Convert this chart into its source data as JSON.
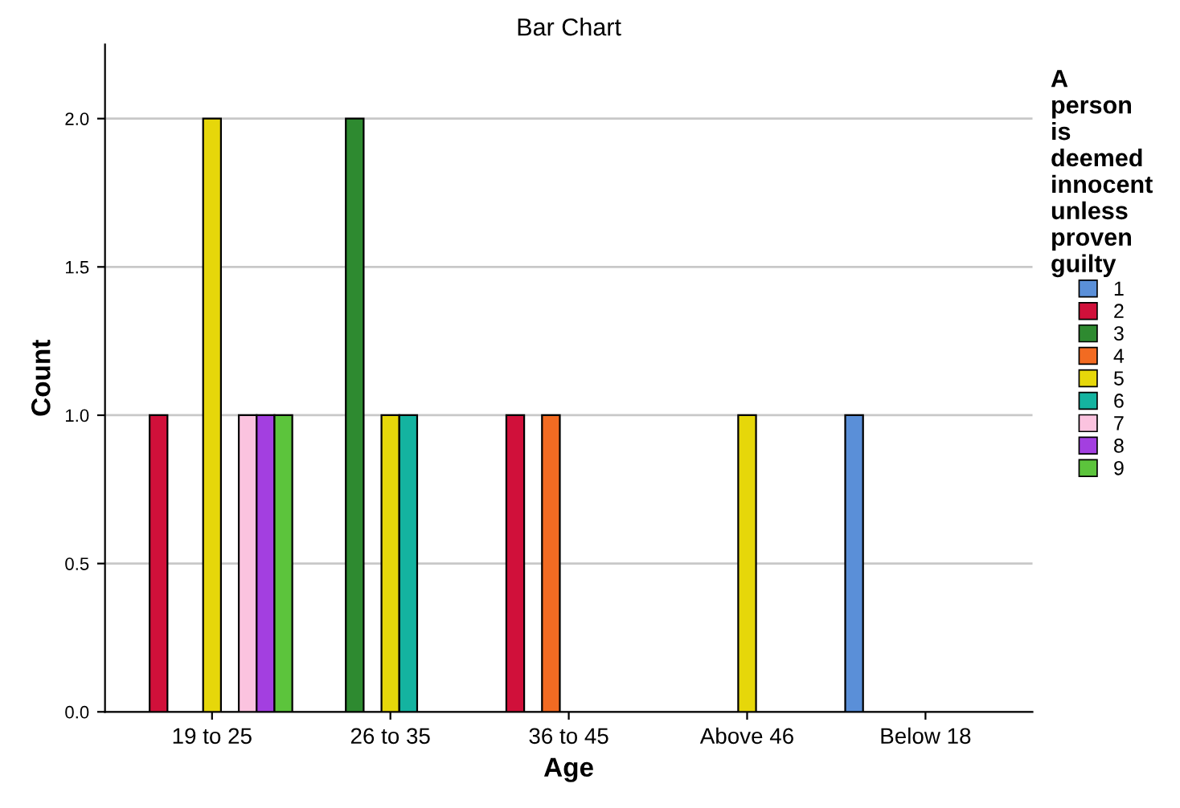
{
  "chart_data": {
    "type": "bar",
    "title": "Bar Chart",
    "xlabel": "Age",
    "ylabel": "Count",
    "legend_title": "A person is deemed innocent unless proven guilty",
    "categories": [
      "19 to 25",
      "26 to 35",
      "36 to 45",
      "Above 46",
      "Below 18"
    ],
    "series": [
      {
        "name": "1",
        "color": "#5a8fd8",
        "values": [
          null,
          null,
          null,
          null,
          1
        ]
      },
      {
        "name": "2",
        "color": "#d0103a",
        "values": [
          1,
          null,
          1,
          null,
          null
        ]
      },
      {
        "name": "3",
        "color": "#2e8a30",
        "values": [
          null,
          2,
          null,
          null,
          null
        ]
      },
      {
        "name": "4",
        "color": "#f26b22",
        "values": [
          null,
          null,
          1,
          null,
          null
        ]
      },
      {
        "name": "5",
        "color": "#e6d70a",
        "values": [
          2,
          1,
          null,
          1,
          null
        ]
      },
      {
        "name": "6",
        "color": "#14b3a0",
        "values": [
          null,
          1,
          null,
          null,
          null
        ]
      },
      {
        "name": "7",
        "color": "#fbc3df",
        "values": [
          1,
          null,
          null,
          null,
          null
        ]
      },
      {
        "name": "8",
        "color": "#a33fe0",
        "values": [
          1,
          null,
          null,
          null,
          null
        ]
      },
      {
        "name": "9",
        "color": "#5cc43c",
        "values": [
          1,
          null,
          null,
          null,
          null
        ]
      }
    ],
    "ylim": [
      0,
      2.25
    ],
    "yticks": [
      {
        "value": 0,
        "label": "0.0"
      },
      {
        "value": 0.5,
        "label": "0.5"
      },
      {
        "value": 1,
        "label": "1.0"
      },
      {
        "value": 1.5,
        "label": "1.5"
      },
      {
        "value": 2,
        "label": "2.0"
      }
    ],
    "grid": "y",
    "legend": "right"
  }
}
